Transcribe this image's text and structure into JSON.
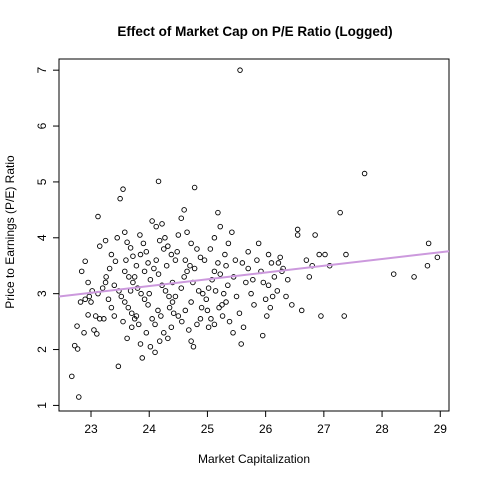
{
  "chart_data": {
    "type": "scatter",
    "title": "Effect of Market Cap on P/E Ratio (Logged)",
    "xlabel": "Market Capitalization",
    "ylabel": "Price to Earnings (P/E) Ratio",
    "xlim": [
      22.45,
      29.15
    ],
    "ylim": [
      0.9,
      7.2
    ],
    "xticks": [
      23,
      24,
      25,
      26,
      27,
      28,
      29
    ],
    "yticks": [
      1,
      2,
      3,
      4,
      5,
      6,
      7
    ],
    "grid": false,
    "legend": "none",
    "marker": "open-circle",
    "regression_line": {
      "color": "#cc99dd",
      "x": [
        22.45,
        29.15
      ],
      "y": [
        2.95,
        3.76
      ]
    },
    "points": [
      [
        22.67,
        1.52
      ],
      [
        22.79,
        1.15
      ],
      [
        22.72,
        2.07
      ],
      [
        22.77,
        2.01
      ],
      [
        22.76,
        2.42
      ],
      [
        22.88,
        2.3
      ],
      [
        22.95,
        2.62
      ],
      [
        23.05,
        2.35
      ],
      [
        23.1,
        2.28
      ],
      [
        22.82,
        2.85
      ],
      [
        22.9,
        2.9
      ],
      [
        22.97,
        2.95
      ],
      [
        23.0,
        2.85
      ],
      [
        23.08,
        2.6
      ],
      [
        23.15,
        2.55
      ],
      [
        23.22,
        2.55
      ],
      [
        23.02,
        3.05
      ],
      [
        22.84,
        3.4
      ],
      [
        22.9,
        3.58
      ],
      [
        22.95,
        3.2
      ],
      [
        23.12,
        3.0
      ],
      [
        23.2,
        3.1
      ],
      [
        23.26,
        3.3
      ],
      [
        23.32,
        3.45
      ],
      [
        23.15,
        3.85
      ],
      [
        23.12,
        4.38
      ],
      [
        23.25,
        3.95
      ],
      [
        23.35,
        3.7
      ],
      [
        23.42,
        3.58
      ],
      [
        23.45,
        4.0
      ],
      [
        23.5,
        4.7
      ],
      [
        23.55,
        4.87
      ],
      [
        23.58,
        4.1
      ],
      [
        23.62,
        3.92
      ],
      [
        23.68,
        3.82
      ],
      [
        23.72,
        3.67
      ],
      [
        23.78,
        3.5
      ],
      [
        23.84,
        4.05
      ],
      [
        23.9,
        3.9
      ],
      [
        23.95,
        3.75
      ],
      [
        23.4,
        3.15
      ],
      [
        23.48,
        3.05
      ],
      [
        23.52,
        2.95
      ],
      [
        23.58,
        2.85
      ],
      [
        23.64,
        2.75
      ],
      [
        23.7,
        2.65
      ],
      [
        23.75,
        2.55
      ],
      [
        23.82,
        2.45
      ],
      [
        23.47,
        1.7
      ],
      [
        23.55,
        2.5
      ],
      [
        23.62,
        2.2
      ],
      [
        23.7,
        2.4
      ],
      [
        23.78,
        2.6
      ],
      [
        23.85,
        2.1
      ],
      [
        23.88,
        1.85
      ],
      [
        23.95,
        2.3
      ],
      [
        23.58,
        3.4
      ],
      [
        23.65,
        3.3
      ],
      [
        23.72,
        3.2
      ],
      [
        23.8,
        3.1
      ],
      [
        23.86,
        3.0
      ],
      [
        23.92,
        2.9
      ],
      [
        23.98,
        2.8
      ],
      [
        24.02,
        3.25
      ],
      [
        24.08,
        3.45
      ],
      [
        24.12,
        3.6
      ],
      [
        24.16,
        3.35
      ],
      [
        24.22,
        3.15
      ],
      [
        24.28,
        3.05
      ],
      [
        24.34,
        2.95
      ],
      [
        24.4,
        3.2
      ],
      [
        24.05,
        4.3
      ],
      [
        24.12,
        4.2
      ],
      [
        24.16,
        5.01
      ],
      [
        24.22,
        4.25
      ],
      [
        24.27,
        4.0
      ],
      [
        24.32,
        3.85
      ],
      [
        24.38,
        3.7
      ],
      [
        24.45,
        3.6
      ],
      [
        24.05,
        2.55
      ],
      [
        24.1,
        2.45
      ],
      [
        24.15,
        2.7
      ],
      [
        24.2,
        2.6
      ],
      [
        24.25,
        2.3
      ],
      [
        24.32,
        2.2
      ],
      [
        24.38,
        2.4
      ],
      [
        24.42,
        2.65
      ],
      [
        24.02,
        2.05
      ],
      [
        24.1,
        1.95
      ],
      [
        24.18,
        2.15
      ],
      [
        24.55,
        3.1
      ],
      [
        24.6,
        3.3
      ],
      [
        24.65,
        3.4
      ],
      [
        24.7,
        3.5
      ],
      [
        24.75,
        3.2
      ],
      [
        24.5,
        4.05
      ],
      [
        24.55,
        4.35
      ],
      [
        24.6,
        4.5
      ],
      [
        24.65,
        4.1
      ],
      [
        24.72,
        3.9
      ],
      [
        24.78,
        4.9
      ],
      [
        24.82,
        3.8
      ],
      [
        24.88,
        3.65
      ],
      [
        24.5,
        2.6
      ],
      [
        24.56,
        2.5
      ],
      [
        24.62,
        2.7
      ],
      [
        24.68,
        2.35
      ],
      [
        24.72,
        2.15
      ],
      [
        24.76,
        2.05
      ],
      [
        24.82,
        2.45
      ],
      [
        24.88,
        2.55
      ],
      [
        24.92,
        3.0
      ],
      [
        24.98,
        2.9
      ],
      [
        25.02,
        3.1
      ],
      [
        25.08,
        3.25
      ],
      [
        25.12,
        3.4
      ],
      [
        25.18,
        3.55
      ],
      [
        25.22,
        3.35
      ],
      [
        25.28,
        3.0
      ],
      [
        25.05,
        3.8
      ],
      [
        25.12,
        4.0
      ],
      [
        25.18,
        4.45
      ],
      [
        25.22,
        4.2
      ],
      [
        25.3,
        3.7
      ],
      [
        25.36,
        3.9
      ],
      [
        25.42,
        4.1
      ],
      [
        25.48,
        3.6
      ],
      [
        25.0,
        2.7
      ],
      [
        25.06,
        2.55
      ],
      [
        25.12,
        2.45
      ],
      [
        25.2,
        2.75
      ],
      [
        25.26,
        2.6
      ],
      [
        25.32,
        2.85
      ],
      [
        25.38,
        2.5
      ],
      [
        25.44,
        2.3
      ],
      [
        25.56,
        7.0
      ],
      [
        25.58,
        2.1
      ],
      [
        25.62,
        2.4
      ],
      [
        25.66,
        3.2
      ],
      [
        25.7,
        3.45
      ],
      [
        25.75,
        3.0
      ],
      [
        25.8,
        2.8
      ],
      [
        25.85,
        3.6
      ],
      [
        25.88,
        3.9
      ],
      [
        25.92,
        3.4
      ],
      [
        25.96,
        3.2
      ],
      [
        26.0,
        2.9
      ],
      [
        26.05,
        3.7
      ],
      [
        26.1,
        3.55
      ],
      [
        26.15,
        3.3
      ],
      [
        26.2,
        3.05
      ],
      [
        25.95,
        2.25
      ],
      [
        26.02,
        2.6
      ],
      [
        26.08,
        2.75
      ],
      [
        26.25,
        3.65
      ],
      [
        26.3,
        3.45
      ],
      [
        26.38,
        3.25
      ],
      [
        26.45,
        2.8
      ],
      [
        26.55,
        4.15
      ],
      [
        26.55,
        4.05
      ],
      [
        26.62,
        2.7
      ],
      [
        26.7,
        3.6
      ],
      [
        26.75,
        3.3
      ],
      [
        26.8,
        3.5
      ],
      [
        26.85,
        4.05
      ],
      [
        26.92,
        3.7
      ],
      [
        26.95,
        2.6
      ],
      [
        27.02,
        3.7
      ],
      [
        27.1,
        3.5
      ],
      [
        27.28,
        4.45
      ],
      [
        27.35,
        2.6
      ],
      [
        27.38,
        3.7
      ],
      [
        27.7,
        5.15
      ],
      [
        28.2,
        3.35
      ],
      [
        28.55,
        3.3
      ],
      [
        28.78,
        3.5
      ],
      [
        28.8,
        3.9
      ],
      [
        28.95,
        3.65
      ],
      [
        23.3,
        2.9
      ],
      [
        23.35,
        2.75
      ],
      [
        23.4,
        2.6
      ],
      [
        23.92,
        3.4
      ],
      [
        24.45,
        2.95
      ],
      [
        24.48,
        3.75
      ],
      [
        24.95,
        3.6
      ],
      [
        25.45,
        3.3
      ],
      [
        25.5,
        2.95
      ],
      [
        26.12,
        2.95
      ],
      [
        26.22,
        3.55
      ],
      [
        26.35,
        2.95
      ],
      [
        24.3,
        3.5
      ],
      [
        24.35,
        2.75
      ],
      [
        23.75,
        3.3
      ],
      [
        23.68,
        3.05
      ],
      [
        24.85,
        3.05
      ],
      [
        24.9,
        2.75
      ],
      [
        25.25,
        2.8
      ],
      [
        25.35,
        3.15
      ],
      [
        25.6,
        3.55
      ],
      [
        25.7,
        3.75
      ],
      [
        23.6,
        3.6
      ],
      [
        23.85,
        3.7
      ],
      [
        24.25,
        3.8
      ],
      [
        24.62,
        3.6
      ],
      [
        24.78,
        3.45
      ],
      [
        25.14,
        3.05
      ],
      [
        25.32,
        3.5
      ],
      [
        25.78,
        3.25
      ],
      [
        26.05,
        3.15
      ],
      [
        23.25,
        3.2
      ],
      [
        24.0,
        3.0
      ],
      [
        24.4,
        2.85
      ],
      [
        24.72,
        2.85
      ],
      [
        25.02,
        2.4
      ],
      [
        25.55,
        2.65
      ],
      [
        26.28,
        3.4
      ],
      [
        24.18,
        3.95
      ],
      [
        23.98,
        3.55
      ]
    ]
  }
}
